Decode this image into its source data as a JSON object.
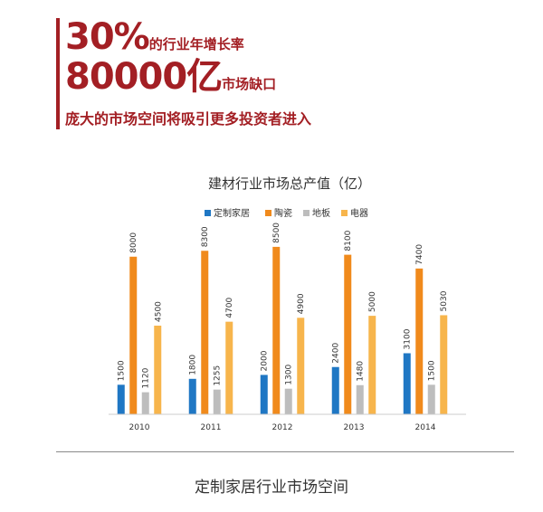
{
  "header": {
    "line1_big": "30%",
    "line1_small": "的行业年增长率",
    "line2_big": "80000亿",
    "line2_small": "市场缺口",
    "line3": "庞大的市场空间将吸引更多投资者进入",
    "accent_color": "#a31f24"
  },
  "chart_data": {
    "type": "bar",
    "title": "建材行业市场总产值（亿）",
    "categories": [
      "2010",
      "2011",
      "2012",
      "2013",
      "2014"
    ],
    "series": [
      {
        "name": "定制家居",
        "values": [
          1500,
          1800,
          2000,
          2400,
          3100
        ],
        "color": "#1f77c4"
      },
      {
        "name": "陶瓷",
        "values": [
          8000,
          8300,
          8500,
          8100,
          7400
        ],
        "color": "#f08a1c"
      },
      {
        "name": "地板",
        "values": [
          1120,
          1255,
          1300,
          1480,
          1500
        ],
        "color": "#bdbdbd"
      },
      {
        "name": "电器",
        "values": [
          4500,
          4700,
          4900,
          5000,
          5030
        ],
        "color": "#f7b54c"
      }
    ],
    "ylim": [
      0,
      9000
    ],
    "grid": false,
    "legend": "top"
  },
  "footer": {
    "caption": "定制家居行业市场空间"
  }
}
